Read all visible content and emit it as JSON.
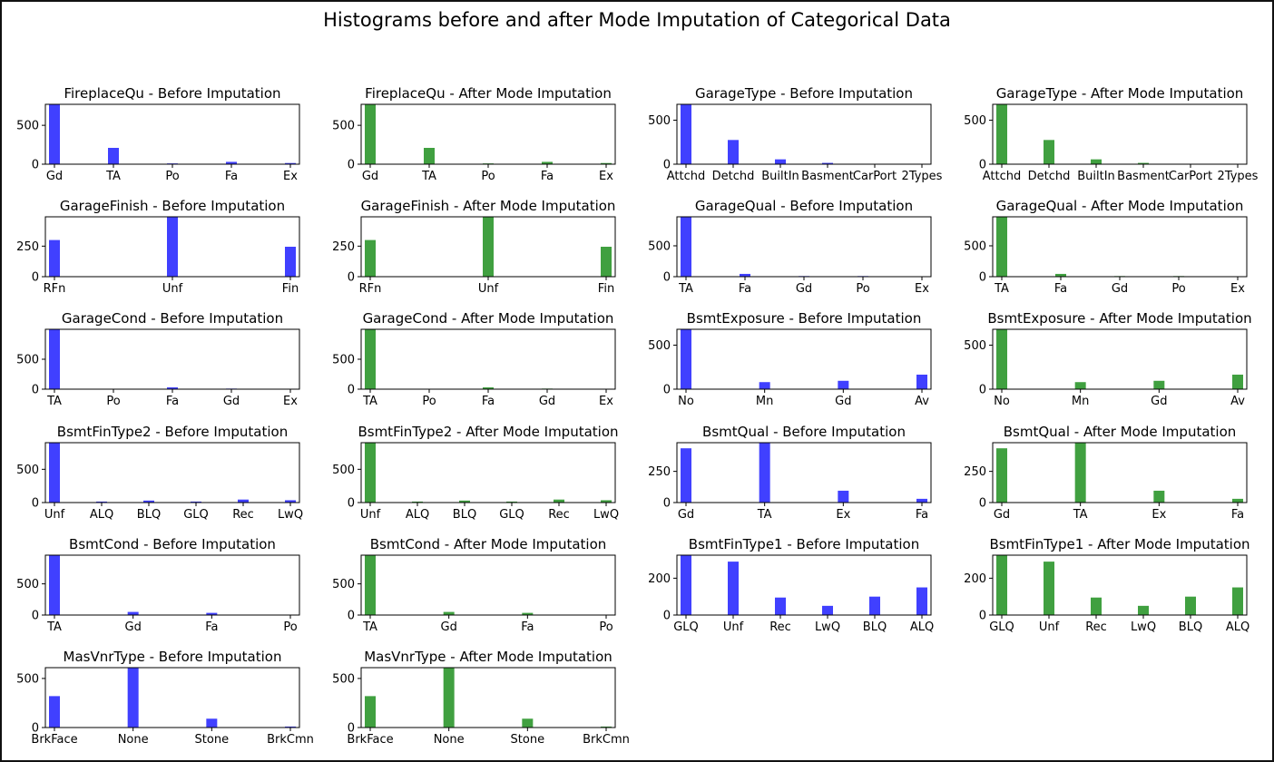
{
  "figure": {
    "suptitle": "Histograms before and after Mode Imputation of Categorical Data",
    "colors": {
      "before": "#0000ff",
      "after": "#008000",
      "bar_alpha": 0.75
    }
  },
  "chart_data": [
    {
      "type": "bar",
      "title": "FireplaceQu - Before Imputation",
      "categories": [
        "Gd",
        "TA",
        "Po",
        "Fa",
        "Ex"
      ],
      "values": [
        770,
        210,
        10,
        30,
        15
      ],
      "ylim": [
        0,
        770
      ],
      "yticks": [
        0,
        500
      ],
      "color": "before"
    },
    {
      "type": "bar",
      "title": "FireplaceQu - After Mode Imputation",
      "categories": [
        "Gd",
        "TA",
        "Po",
        "Fa",
        "Ex"
      ],
      "values": [
        770,
        210,
        10,
        30,
        15
      ],
      "ylim": [
        0,
        770
      ],
      "yticks": [
        0,
        500
      ],
      "color": "after"
    },
    {
      "type": "bar",
      "title": "GarageType - Before Imputation",
      "categories": [
        "Attchd",
        "Detchd",
        "BuiltIn",
        "Basment",
        "CarPort",
        "2Types"
      ],
      "values": [
        680,
        275,
        55,
        15,
        5,
        5
      ],
      "ylim": [
        0,
        680
      ],
      "yticks": [
        0,
        500
      ],
      "color": "before"
    },
    {
      "type": "bar",
      "title": "GarageType - After Mode Imputation",
      "categories": [
        "Attchd",
        "Detchd",
        "BuiltIn",
        "Basment",
        "CarPort",
        "2Types"
      ],
      "values": [
        680,
        275,
        55,
        15,
        5,
        5
      ],
      "ylim": [
        0,
        680
      ],
      "yticks": [
        0,
        500
      ],
      "color": "after"
    },
    {
      "type": "bar",
      "title": "GarageFinish - Before Imputation",
      "categories": [
        "RFn",
        "Unf",
        "Fin"
      ],
      "values": [
        300,
        490,
        245
      ],
      "ylim": [
        0,
        490
      ],
      "yticks": [
        0,
        250
      ],
      "color": "before"
    },
    {
      "type": "bar",
      "title": "GarageFinish - After Mode Imputation",
      "categories": [
        "RFn",
        "Unf",
        "Fin"
      ],
      "values": [
        300,
        490,
        245
      ],
      "ylim": [
        0,
        490
      ],
      "yticks": [
        0,
        250
      ],
      "color": "after"
    },
    {
      "type": "bar",
      "title": "GarageQual - Before Imputation",
      "categories": [
        "TA",
        "Fa",
        "Gd",
        "Po",
        "Ex"
      ],
      "values": [
        970,
        45,
        10,
        10,
        5
      ],
      "ylim": [
        0,
        970
      ],
      "yticks": [
        0,
        500
      ],
      "color": "before"
    },
    {
      "type": "bar",
      "title": "GarageQual - After Mode Imputation",
      "categories": [
        "TA",
        "Fa",
        "Gd",
        "Po",
        "Ex"
      ],
      "values": [
        970,
        45,
        10,
        10,
        5
      ],
      "ylim": [
        0,
        970
      ],
      "yticks": [
        0,
        500
      ],
      "color": "after"
    },
    {
      "type": "bar",
      "title": "GarageCond - Before Imputation",
      "categories": [
        "TA",
        "Po",
        "Fa",
        "Gd",
        "Ex"
      ],
      "values": [
        1000,
        5,
        30,
        10,
        5
      ],
      "ylim": [
        0,
        1000
      ],
      "yticks": [
        0,
        500
      ],
      "color": "before"
    },
    {
      "type": "bar",
      "title": "GarageCond - After Mode Imputation",
      "categories": [
        "TA",
        "Po",
        "Fa",
        "Gd",
        "Ex"
      ],
      "values": [
        1000,
        5,
        30,
        10,
        5
      ],
      "ylim": [
        0,
        1000
      ],
      "yticks": [
        0,
        500
      ],
      "color": "after"
    },
    {
      "type": "bar",
      "title": "BsmtExposure - Before Imputation",
      "categories": [
        "No",
        "Mn",
        "Gd",
        "Av"
      ],
      "values": [
        680,
        80,
        95,
        165
      ],
      "ylim": [
        0,
        680
      ],
      "yticks": [
        0,
        500
      ],
      "color": "before"
    },
    {
      "type": "bar",
      "title": "BsmtExposure - After Mode Imputation",
      "categories": [
        "No",
        "Mn",
        "Gd",
        "Av"
      ],
      "values": [
        680,
        80,
        95,
        165
      ],
      "ylim": [
        0,
        680
      ],
      "yticks": [
        0,
        500
      ],
      "color": "after"
    },
    {
      "type": "bar",
      "title": "BsmtFinType2 - Before Imputation",
      "categories": [
        "Unf",
        "ALQ",
        "BLQ",
        "GLQ",
        "Rec",
        "LwQ"
      ],
      "values": [
        900,
        15,
        30,
        15,
        45,
        35
      ],
      "ylim": [
        0,
        900
      ],
      "yticks": [
        0,
        500
      ],
      "color": "before"
    },
    {
      "type": "bar",
      "title": "BsmtFinType2 - After Mode Imputation",
      "categories": [
        "Unf",
        "ALQ",
        "BLQ",
        "GLQ",
        "Rec",
        "LwQ"
      ],
      "values": [
        900,
        15,
        30,
        15,
        45,
        35
      ],
      "ylim": [
        0,
        900
      ],
      "yticks": [
        0,
        500
      ],
      "color": "after"
    },
    {
      "type": "bar",
      "title": "BsmtQual - Before Imputation",
      "categories": [
        "Gd",
        "TA",
        "Ex",
        "Fa"
      ],
      "values": [
        435,
        480,
        95,
        30
      ],
      "ylim": [
        0,
        480
      ],
      "yticks": [
        0,
        250
      ],
      "color": "before"
    },
    {
      "type": "bar",
      "title": "BsmtQual - After Mode Imputation",
      "categories": [
        "Gd",
        "TA",
        "Ex",
        "Fa"
      ],
      "values": [
        435,
        480,
        95,
        30
      ],
      "ylim": [
        0,
        480
      ],
      "yticks": [
        0,
        250
      ],
      "color": "after"
    },
    {
      "type": "bar",
      "title": "BsmtCond - Before Imputation",
      "categories": [
        "TA",
        "Gd",
        "Fa",
        "Po"
      ],
      "values": [
        960,
        50,
        35,
        3
      ],
      "ylim": [
        0,
        960
      ],
      "yticks": [
        0,
        500
      ],
      "color": "before"
    },
    {
      "type": "bar",
      "title": "BsmtCond - After Mode Imputation",
      "categories": [
        "TA",
        "Gd",
        "Fa",
        "Po"
      ],
      "values": [
        960,
        50,
        35,
        3
      ],
      "ylim": [
        0,
        960
      ],
      "yticks": [
        0,
        500
      ],
      "color": "after"
    },
    {
      "type": "bar",
      "title": "BsmtFinType1 - Before Imputation",
      "categories": [
        "GLQ",
        "Unf",
        "Rec",
        "LwQ",
        "BLQ",
        "ALQ"
      ],
      "values": [
        325,
        290,
        95,
        50,
        100,
        150
      ],
      "ylim": [
        0,
        325
      ],
      "yticks": [
        0,
        200
      ],
      "color": "before"
    },
    {
      "type": "bar",
      "title": "BsmtFinType1 - After Mode Imputation",
      "categories": [
        "GLQ",
        "Unf",
        "Rec",
        "LwQ",
        "BLQ",
        "ALQ"
      ],
      "values": [
        325,
        290,
        95,
        50,
        100,
        150
      ],
      "ylim": [
        0,
        325
      ],
      "yticks": [
        0,
        200
      ],
      "color": "after"
    },
    {
      "type": "bar",
      "title": "MasVnrType - Before Imputation",
      "categories": [
        "BrkFace",
        "None",
        "Stone",
        "BrkCmn"
      ],
      "values": [
        320,
        610,
        90,
        10
      ],
      "ylim": [
        0,
        610
      ],
      "yticks": [
        0,
        500
      ],
      "color": "before"
    },
    {
      "type": "bar",
      "title": "MasVnrType - After Mode Imputation",
      "categories": [
        "BrkFace",
        "None",
        "Stone",
        "BrkCmn"
      ],
      "values": [
        320,
        610,
        90,
        10
      ],
      "ylim": [
        0,
        610
      ],
      "yticks": [
        0,
        500
      ],
      "color": "after"
    }
  ]
}
